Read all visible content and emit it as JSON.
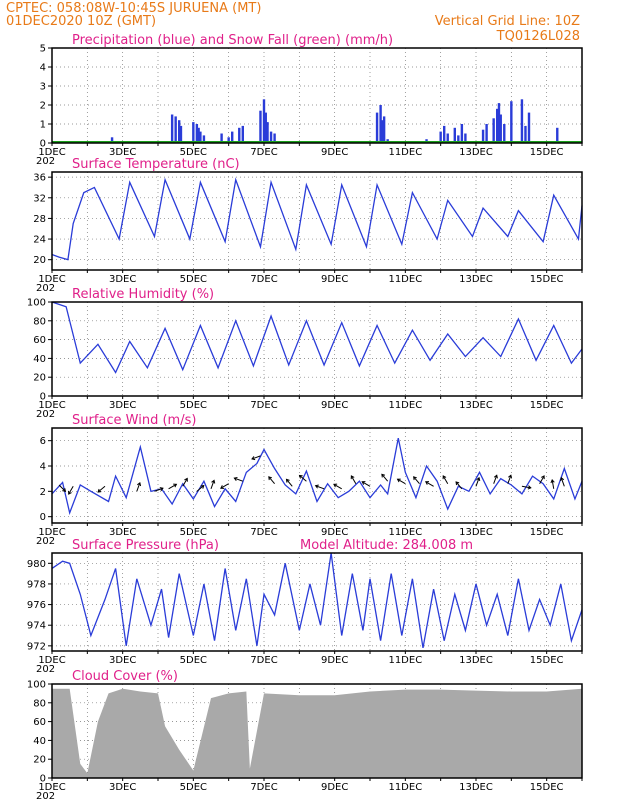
{
  "header": {
    "line1": "CPTEC:   058:08W-10:45S   JURUENA (MT)",
    "line2": "01DEC2020 10Z (GMT)",
    "grid_note": "Vertical Grid Line: 10Z",
    "run_code": "TQ0126L028"
  },
  "colors": {
    "header_text": "#e87a18",
    "panel_title": "#e0208a",
    "line": "#2a3cd8",
    "snow": "#1aa01a",
    "cloud": "#a9a9a9",
    "grid": "#777777"
  },
  "x_axis": {
    "ticks": [
      "1DEC",
      "3DEC",
      "5DEC",
      "7DEC",
      "9DEC",
      "11DEC",
      "13DEC",
      "15DEC"
    ],
    "day_range": [
      1,
      16
    ],
    "year_stub": "202"
  },
  "chart_data": [
    {
      "type": "bar",
      "title": "Precipitation (blue) and Snow Fall (green) (mm/h)",
      "ylim": [
        0,
        5
      ],
      "yticks": [
        "0",
        "1",
        "2",
        "3",
        "4",
        "5"
      ],
      "series": [
        {
          "name": "Precipitation",
          "x": [
            2.7,
            4.4,
            4.5,
            4.6,
            4.65,
            5.0,
            5.1,
            5.15,
            5.2,
            5.3,
            5.8,
            6.0,
            6.1,
            6.3,
            6.4,
            6.9,
            7.0,
            7.05,
            7.1,
            7.2,
            7.3,
            10.2,
            10.3,
            10.35,
            10.4,
            10.5,
            11.6,
            12.0,
            12.1,
            12.2,
            12.4,
            12.5,
            12.6,
            12.7,
            13.2,
            13.3,
            13.5,
            13.6,
            13.65,
            13.7,
            13.8,
            14.0,
            14.3,
            14.4,
            14.5,
            15.3
          ],
          "values": [
            0.3,
            1.5,
            1.4,
            1.2,
            0.9,
            1.1,
            1.0,
            0.8,
            0.6,
            0.4,
            0.5,
            0.3,
            0.6,
            0.8,
            0.9,
            1.7,
            2.3,
            1.6,
            1.1,
            0.6,
            0.5,
            1.6,
            2.0,
            1.2,
            1.4,
            0.2,
            0.2,
            0.6,
            0.9,
            0.5,
            0.8,
            0.4,
            1.0,
            0.5,
            0.7,
            1.0,
            1.3,
            1.8,
            2.1,
            1.5,
            1.0,
            2.2,
            2.3,
            0.9,
            1.6,
            0.8
          ]
        },
        {
          "name": "Snow Fall",
          "x": [],
          "values": []
        }
      ]
    },
    {
      "type": "line",
      "title": "Surface Temperature (nC)",
      "ylim": [
        18,
        37
      ],
      "yticks": [
        "20",
        "24",
        "28",
        "32",
        "36"
      ],
      "x": [
        1.0,
        1.2,
        1.45,
        1.6,
        1.9,
        2.2,
        2.9,
        3.2,
        3.9,
        4.2,
        4.9,
        5.2,
        5.9,
        6.2,
        6.9,
        7.2,
        7.9,
        8.2,
        8.9,
        9.2,
        9.9,
        10.2,
        10.9,
        11.2,
        11.9,
        12.2,
        12.9,
        13.2,
        13.9,
        14.2,
        14.9,
        15.2,
        15.9,
        16.0
      ],
      "values": [
        21.0,
        20.5,
        20.0,
        27.0,
        33.0,
        34.0,
        24.0,
        35.0,
        24.5,
        35.5,
        24.0,
        35.0,
        23.5,
        35.5,
        22.5,
        35.0,
        22.0,
        34.5,
        23.0,
        34.5,
        22.5,
        34.5,
        23.0,
        33.0,
        24.0,
        31.5,
        24.5,
        30.0,
        24.5,
        29.5,
        23.5,
        32.5,
        24.0,
        30.5
      ]
    },
    {
      "type": "line",
      "title": "Relative Humidity (%)",
      "ylim": [
        0,
        100
      ],
      "yticks": [
        "0",
        "20",
        "40",
        "60",
        "80",
        "100"
      ],
      "x": [
        1.0,
        1.4,
        1.8,
        2.3,
        2.8,
        3.2,
        3.7,
        4.2,
        4.7,
        5.2,
        5.7,
        6.2,
        6.7,
        7.2,
        7.7,
        8.2,
        8.7,
        9.2,
        9.7,
        10.2,
        10.7,
        11.2,
        11.7,
        12.2,
        12.7,
        13.2,
        13.7,
        14.2,
        14.7,
        15.2,
        15.7,
        16.0
      ],
      "values": [
        100,
        95,
        35,
        55,
        25,
        58,
        30,
        72,
        28,
        75,
        30,
        80,
        32,
        85,
        33,
        80,
        33,
        78,
        32,
        75,
        35,
        70,
        38,
        66,
        42,
        62,
        42,
        82,
        38,
        75,
        35,
        50
      ]
    },
    {
      "type": "line",
      "title": "Surface Wind (m/s)",
      "ylim": [
        -0.5,
        7
      ],
      "yticks": [
        "0",
        "2",
        "4",
        "6"
      ],
      "x": [
        1.0,
        1.3,
        1.5,
        1.8,
        2.1,
        2.6,
        2.8,
        3.1,
        3.5,
        3.8,
        4.1,
        4.4,
        4.7,
        5.0,
        5.3,
        5.6,
        5.9,
        6.2,
        6.5,
        6.8,
        7.0,
        7.3,
        7.6,
        7.9,
        8.2,
        8.5,
        8.8,
        9.1,
        9.4,
        9.7,
        10.0,
        10.3,
        10.5,
        10.8,
        11.0,
        11.3,
        11.6,
        11.9,
        12.2,
        12.5,
        12.8,
        13.1,
        13.4,
        13.7,
        14.0,
        14.3,
        14.6,
        14.9,
        15.2,
        15.5,
        15.8,
        16.0
      ],
      "values": [
        1.8,
        2.7,
        0.3,
        2.5,
        2.0,
        1.2,
        3.2,
        1.5,
        5.5,
        2.0,
        2.2,
        1.0,
        2.6,
        1.4,
        2.8,
        0.8,
        2.2,
        1.2,
        3.5,
        4.2,
        5.3,
        3.8,
        2.5,
        1.8,
        3.6,
        1.2,
        2.6,
        1.5,
        2.0,
        2.8,
        1.5,
        2.5,
        1.8,
        6.2,
        3.5,
        1.5,
        4.0,
        2.8,
        0.6,
        2.4,
        2.0,
        3.5,
        1.8,
        3.0,
        2.5,
        1.8,
        3.2,
        2.6,
        1.4,
        3.8,
        1.4,
        2.8
      ],
      "arrows": {
        "x": [
          1.2,
          1.6,
          2.5,
          3.4,
          3.9,
          4.3,
          4.7,
          5.1,
          5.5,
          6.0,
          6.4,
          6.9,
          7.3,
          7.8,
          8.2,
          8.7,
          9.2,
          9.6,
          10.0,
          10.5,
          11.0,
          11.4,
          11.8,
          12.2,
          12.6,
          13.0,
          13.5,
          13.9,
          14.3,
          14.8,
          15.2,
          15.5
        ],
        "dir_deg": [
          135,
          210,
          230,
          20,
          70,
          60,
          30,
          50,
          20,
          240,
          290,
          250,
          320,
          320,
          310,
          290,
          300,
          330,
          300,
          320,
          300,
          320,
          300,
          330,
          320,
          20,
          20,
          20,
          100,
          30,
          350,
          340
        ],
        "speed": [
          2.5,
          2.4,
          2.4,
          2.0,
          2.0,
          2.2,
          2.4,
          2.0,
          2.2,
          2.6,
          2.8,
          4.8,
          2.6,
          2.4,
          2.8,
          2.2,
          2.2,
          2.6,
          2.4,
          2.8,
          2.6,
          2.6,
          2.4,
          2.6,
          2.2,
          2.4,
          2.6,
          2.6,
          2.4,
          2.6,
          2.2,
          2.4
        ]
      }
    },
    {
      "type": "line",
      "title": "Surface Pressure (hPa)",
      "annotation": "Model Altitude: 284.008 m",
      "ylim": [
        971.5,
        981
      ],
      "yticks": [
        "972",
        "974",
        "976",
        "978",
        "980"
      ],
      "x": [
        1.0,
        1.3,
        1.5,
        1.8,
        2.1,
        2.5,
        2.8,
        3.1,
        3.4,
        3.8,
        4.1,
        4.3,
        4.6,
        5.0,
        5.3,
        5.6,
        5.9,
        6.2,
        6.5,
        6.8,
        7.0,
        7.3,
        7.6,
        8.0,
        8.3,
        8.6,
        8.9,
        9.2,
        9.5,
        9.8,
        10.0,
        10.3,
        10.6,
        10.9,
        11.2,
        11.5,
        11.8,
        12.1,
        12.4,
        12.7,
        13.0,
        13.3,
        13.6,
        13.9,
        14.2,
        14.5,
        14.8,
        15.1,
        15.4,
        15.7,
        16.0
      ],
      "values": [
        979.5,
        980.2,
        980.0,
        977.0,
        973.0,
        976.5,
        979.5,
        972.0,
        978.5,
        974.0,
        977.5,
        972.8,
        979.0,
        973.0,
        978.0,
        972.5,
        979.5,
        973.5,
        978.5,
        972.0,
        977.0,
        975.0,
        980.0,
        973.5,
        978.0,
        974.0,
        981.0,
        973.0,
        979.0,
        973.5,
        978.5,
        972.5,
        979.0,
        973.0,
        978.5,
        971.8,
        977.5,
        972.5,
        977.0,
        973.5,
        978.0,
        974.0,
        977.0,
        973.0,
        978.5,
        973.5,
        976.5,
        974.0,
        978.0,
        972.5,
        975.5
      ]
    },
    {
      "type": "area",
      "title": "Cloud Cover (%)",
      "ylim": [
        0,
        100
      ],
      "yticks": [
        "0",
        "20",
        "40",
        "60",
        "80",
        "100"
      ],
      "x": [
        1.0,
        1.5,
        1.8,
        2.0,
        2.3,
        2.6,
        3.0,
        3.5,
        4.0,
        4.2,
        4.6,
        5.0,
        5.5,
        6.0,
        6.5,
        6.6,
        7.0,
        8.0,
        9.0,
        10.0,
        11.0,
        12.0,
        13.0,
        14.0,
        15.0,
        16.0
      ],
      "values": [
        95,
        95,
        15,
        5,
        60,
        90,
        95,
        92,
        90,
        55,
        30,
        8,
        85,
        90,
        92,
        10,
        90,
        88,
        88,
        92,
        94,
        94,
        93,
        92,
        92,
        95
      ]
    }
  ]
}
